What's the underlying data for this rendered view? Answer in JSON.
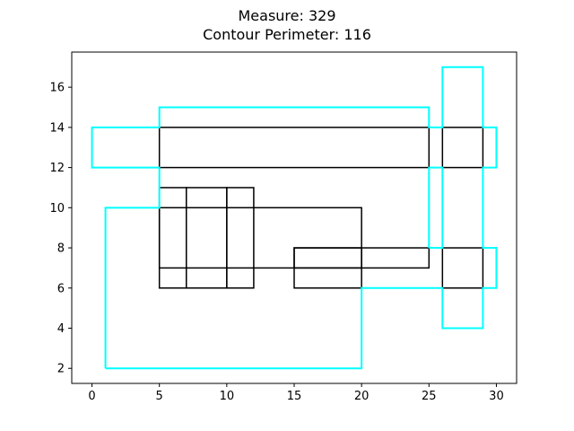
{
  "chart_data": {
    "type": "rectangle-overlay",
    "title_line1": "Measure: 329",
    "title_line2": "Contour Perimeter: 116",
    "xlabel": "",
    "ylabel": "",
    "xlim": [
      -1.5,
      31.5
    ],
    "ylim": [
      1.25,
      17.75
    ],
    "x_ticks": [
      0,
      5,
      10,
      15,
      20,
      25,
      30
    ],
    "y_ticks": [
      2,
      4,
      6,
      8,
      10,
      12,
      14,
      16
    ],
    "grid": false,
    "colors": {
      "rectangles": "#000000",
      "contour": "#00ffff"
    },
    "rectangles": [
      {
        "x0": 5,
        "y0": 12,
        "x1": 25,
        "y1": 14
      },
      {
        "x0": 26,
        "y0": 12,
        "x1": 29,
        "y1": 14
      },
      {
        "x0": 5,
        "y0": 6,
        "x1": 7,
        "y1": 11
      },
      {
        "x0": 7,
        "y0": 6,
        "x1": 10,
        "y1": 11
      },
      {
        "x0": 10,
        "y0": 6,
        "x1": 12,
        "y1": 11
      },
      {
        "x0": 5,
        "y0": 7,
        "x1": 20,
        "y1": 10
      },
      {
        "x0": 15,
        "y0": 6,
        "x1": 20,
        "y1": 8
      },
      {
        "x0": 15,
        "y0": 7,
        "x1": 25,
        "y1": 8
      },
      {
        "x0": 26,
        "y0": 6,
        "x1": 29,
        "y1": 8
      }
    ],
    "contours": [
      {
        "points": [
          [
            1,
            2
          ],
          [
            20,
            2
          ],
          [
            20,
            6
          ],
          [
            26,
            6
          ],
          [
            26,
            4
          ],
          [
            29,
            4
          ],
          [
            29,
            6
          ],
          [
            30,
            6
          ],
          [
            30,
            8
          ],
          [
            29,
            8
          ],
          [
            29,
            12
          ],
          [
            30,
            12
          ],
          [
            30,
            14
          ],
          [
            29,
            14
          ],
          [
            29,
            17
          ],
          [
            26,
            17
          ],
          [
            26,
            14
          ],
          [
            25,
            14
          ],
          [
            25,
            15
          ],
          [
            5,
            15
          ],
          [
            5,
            14
          ],
          [
            0,
            14
          ],
          [
            0,
            12
          ],
          [
            5,
            12
          ],
          [
            5,
            10
          ],
          [
            1,
            10
          ],
          [
            1,
            2
          ]
        ]
      },
      {
        "points": [
          [
            25,
            8
          ],
          [
            26,
            8
          ],
          [
            26,
            12
          ],
          [
            25,
            12
          ],
          [
            25,
            8
          ]
        ]
      }
    ]
  }
}
